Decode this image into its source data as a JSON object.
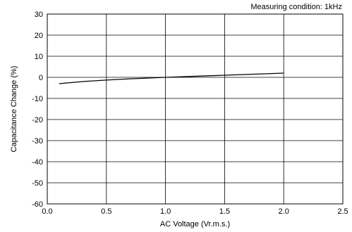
{
  "chart_data": {
    "type": "line",
    "title": "",
    "annotation": "Measuring condition: 1kHz",
    "xlabel": "AC Voltage (Vr.m.s.)",
    "ylabel": "Capacitance Change (%)",
    "xlim": [
      0.0,
      2.5
    ],
    "ylim": [
      -60,
      30
    ],
    "xticks": [
      "0.0",
      "0.5",
      "1.0",
      "1.5",
      "2.0",
      "2.5"
    ],
    "yticks": [
      "30",
      "20",
      "10",
      "0",
      "-10",
      "-20",
      "-30",
      "-40",
      "-50",
      "-60"
    ],
    "grid": true,
    "series": [
      {
        "x": [
          0.1,
          0.3,
          0.5,
          0.7,
          1.0,
          1.3,
          1.5,
          1.75,
          2.0
        ],
        "y": [
          -3.0,
          -2.0,
          -1.3,
          -0.7,
          0.0,
          0.6,
          1.0,
          1.5,
          2.0
        ]
      }
    ]
  }
}
